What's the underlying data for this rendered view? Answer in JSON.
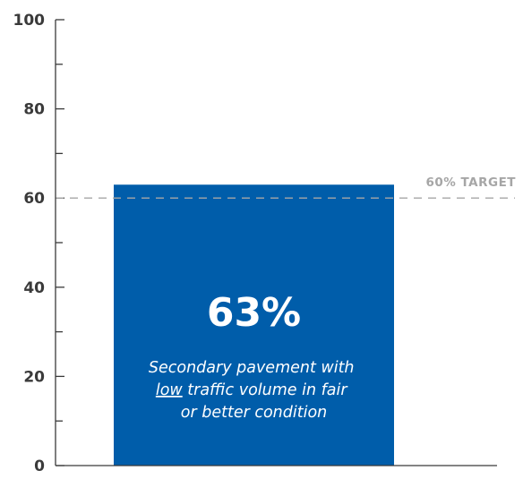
{
  "chart_data": {
    "type": "bar",
    "categories": [
      ""
    ],
    "values": [
      63
    ],
    "ylim": [
      0,
      100
    ],
    "major_ticks": [
      0,
      20,
      40,
      60,
      80,
      100
    ],
    "minor_ticks": [
      10,
      30,
      50,
      70,
      90
    ],
    "tick_labels": [
      "0",
      "20",
      "40",
      "60",
      "80",
      "100"
    ],
    "grid": false,
    "bar_color": "#005daa",
    "target": {
      "value": 60,
      "label": "60% TARGET",
      "color": "#a6a6a6"
    },
    "bar_value_label": "63%",
    "bar_caption": {
      "before_underline": "Secondary pavement with",
      "underlined": "low",
      "after_underline": " traffic volume in fair",
      "last_line": "or better condition"
    }
  }
}
